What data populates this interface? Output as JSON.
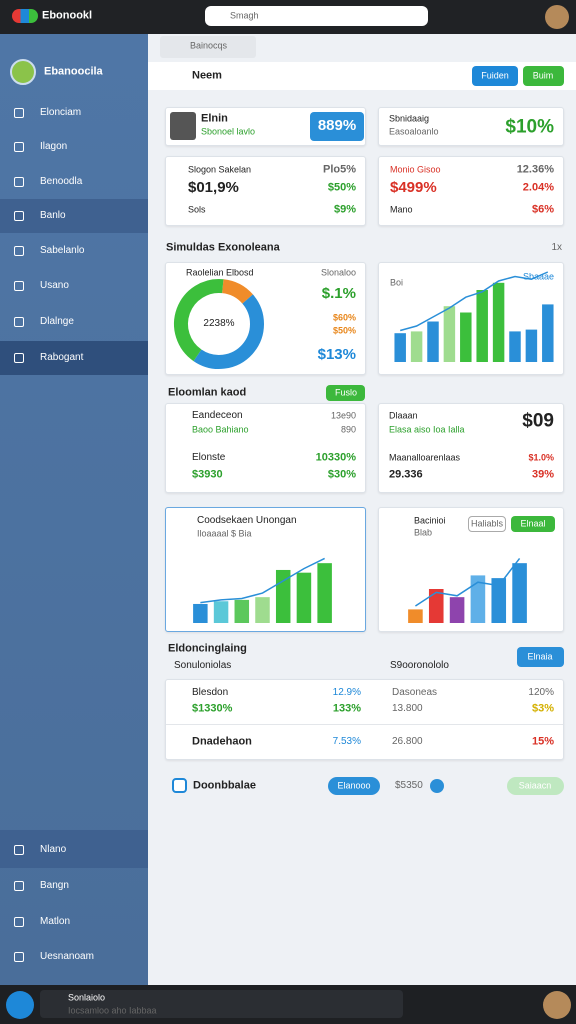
{
  "topbar": {
    "brand": "Ebonookl",
    "search": "Smagh"
  },
  "sidebar": {
    "user": "Ebanoocila",
    "nav": [
      "Elonciam",
      "Ilagon",
      "Benoodla",
      "Banlo",
      "Sabelanlo",
      "Usano",
      "Dlalnge",
      "Rabogant"
    ],
    "bottom_nav": [
      "Nlano",
      "Bangn",
      "Matlon",
      "Uesnanoam"
    ]
  },
  "breadcrumb": "Bainocqs",
  "header": {
    "title": "Neem",
    "buttons": [
      "Fuiden",
      "Buim"
    ]
  },
  "summary": [
    {
      "name": "Elnin",
      "sub": "Sbonoel lavlo",
      "value": "889%"
    },
    {
      "name": "Sbnidaaig",
      "sub": "Easoaloanlo",
      "value": "$10%"
    }
  ],
  "stats": [
    {
      "rows": [
        [
          "Slogon Sakelan",
          "Plo5%"
        ],
        [
          "$01,9%",
          "$50%"
        ],
        [
          "Sols",
          "$9%"
        ]
      ]
    },
    {
      "rows": [
        [
          "Monio Gisoo",
          "12.36%"
        ],
        [
          "$499%",
          "2.04%"
        ],
        [
          "Mano",
          "$6%"
        ]
      ]
    }
  ],
  "section1": {
    "title": "Simuldas Exonoleana",
    "action": "1x"
  },
  "donut_card": {
    "title": "Raolelian Elbosd",
    "side": "Slonaloo",
    "center": "2238%",
    "labels": [
      "$.1%",
      "$60%",
      "$50%",
      "$13%"
    ],
    "segments": [
      {
        "value": 12,
        "color": "#f08c2a"
      },
      {
        "value": 46,
        "color": "#2a8fd8"
      },
      {
        "value": 42,
        "color": "#3cbf3c"
      }
    ]
  },
  "bar_card": {
    "label": "Boi",
    "side": "Sbaaae",
    "ylim": [
      0,
      100
    ],
    "bars": [
      {
        "value": 32,
        "color": "#2a8fd8"
      },
      {
        "value": 34,
        "color": "#9fdc8f"
      },
      {
        "value": 45,
        "color": "#2a8fd8"
      },
      {
        "value": 62,
        "color": "#9fdc8f"
      },
      {
        "value": 55,
        "color": "#3cbf3c"
      },
      {
        "value": 80,
        "color": "#3cbf3c"
      },
      {
        "value": 88,
        "color": "#3cbf3c"
      },
      {
        "value": 34,
        "color": "#2a8fd8"
      },
      {
        "value": 36,
        "color": "#2a8fd8"
      },
      {
        "value": 64,
        "color": "#2a8fd8"
      }
    ],
    "line": {
      "color": "#2a8fd8",
      "values": [
        35,
        40,
        50,
        60,
        72,
        78,
        90,
        95,
        92,
        100
      ]
    }
  },
  "section2": {
    "title": "Eloomlan kaod",
    "button": "Fuslo"
  },
  "detail_left": {
    "rows": [
      [
        "Eandeceon",
        "13e90"
      ],
      [
        "Baoo Bahiano",
        "890"
      ],
      [
        "Elonste",
        "10330%"
      ],
      [
        "$3930",
        "$30%"
      ]
    ]
  },
  "detail_right": {
    "rows": [
      [
        "Dlaaan",
        "$09"
      ],
      [
        "Elasa aiso Ioa Ialla"
      ],
      [
        "Maanalloarenlaas",
        "$1.0%"
      ],
      [
        "29.336",
        "39%"
      ]
    ]
  },
  "chart_left": {
    "title": "Coodsekaen Unongan",
    "sub": "Iloaaaal $ Bia",
    "ylim": [
      0,
      100
    ],
    "bars": [
      {
        "value": 28,
        "color": "#2a8fd8"
      },
      {
        "value": 32,
        "color": "#5bc8d8"
      },
      {
        "value": 34,
        "color": "#5cc85c"
      },
      {
        "value": 38,
        "color": "#9fdc8f"
      },
      {
        "value": 78,
        "color": "#3cbf3c"
      },
      {
        "value": 74,
        "color": "#3cbf3c"
      },
      {
        "value": 88,
        "color": "#3cbf3c"
      }
    ],
    "line": {
      "color": "#2a8fd8",
      "values": [
        30,
        34,
        36,
        44,
        62,
        80,
        95
      ]
    }
  },
  "chart_right": {
    "title": "Bacinioi",
    "sub": "Blab",
    "buttons": [
      "Haliabls",
      "Elnaal"
    ],
    "ylim": [
      0,
      100
    ],
    "bars": [
      {
        "value": 20,
        "color": "#f08c2a"
      },
      {
        "value": 50,
        "color": "#e53935"
      },
      {
        "value": 38,
        "color": "#8e44ad"
      },
      {
        "value": 70,
        "color": "#5fb0e8"
      },
      {
        "value": 66,
        "color": "#2a8fd8"
      },
      {
        "value": 88,
        "color": "#2a8fd8"
      }
    ],
    "line": {
      "color": "#2a8fd8",
      "values": [
        25,
        45,
        40,
        60,
        55,
        95
      ]
    }
  },
  "section3": {
    "title": "Eldoncinglaing",
    "button": "Elnaia",
    "columns": [
      "Sonuloniolas",
      "S9ooronololo"
    ]
  },
  "table": {
    "rows": [
      [
        "Blesdon",
        "12.9%",
        "Dasoneas",
        "120%"
      ],
      [
        "$1330%",
        "133%",
        "13.800",
        "$3%"
      ],
      [
        "Dnadehaon",
        "7.53%",
        "26.800",
        "15%"
      ]
    ]
  },
  "action_row": {
    "label": "Doonbbalae",
    "button": "Elanooo",
    "value": "$5350",
    "button2": "Saiaacn"
  },
  "footer": {
    "title": "Sonlaiolo",
    "sub": "Iocsamloo aho Iabbaa"
  }
}
